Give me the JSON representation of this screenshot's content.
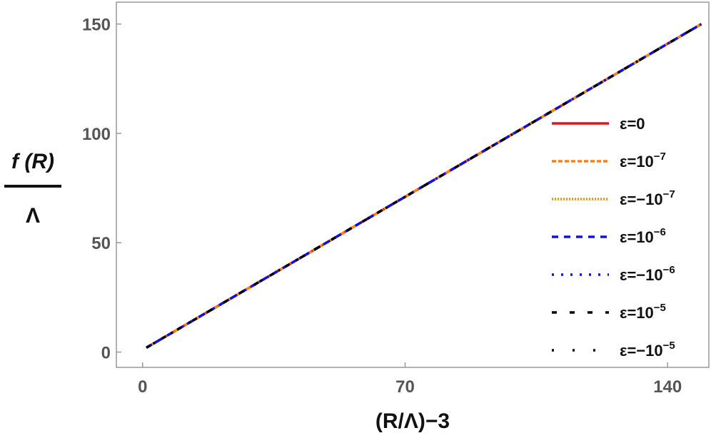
{
  "chart_data": {
    "type": "line",
    "xlabel": "(R/Λ)−3",
    "ylabel_numerator": "f (R)",
    "ylabel_denominator": "Λ",
    "xlim": [
      -7,
      151
    ],
    "ylim": [
      -7,
      160
    ],
    "xticks": [
      0,
      70,
      140
    ],
    "yticks": [
      0,
      50,
      100,
      150
    ],
    "grid": false,
    "legend_position": "right",
    "x": [
      1,
      149
    ],
    "series": [
      {
        "name": "ε=0",
        "label_base": "ε=0",
        "label_sup": "",
        "color": "#e8101a",
        "style": "solid",
        "values": [
          2,
          150
        ]
      },
      {
        "name": "ε=10−7",
        "label_base": "ε=10",
        "label_sup": "−7",
        "color": "#ff7f0e",
        "style": "dashed",
        "values": [
          2,
          150
        ]
      },
      {
        "name": "ε=−10−7",
        "label_base": "ε=−10",
        "label_sup": "−7",
        "color": "#ff8c00",
        "style": "dotted",
        "values": [
          2,
          150
        ]
      },
      {
        "name": "ε=10−6",
        "label_base": "ε=10",
        "label_sup": "−6",
        "color": "#1010e0",
        "style": "dashed-long",
        "values": [
          2,
          150
        ]
      },
      {
        "name": "ε=−10−6",
        "label_base": "ε=−10",
        "label_sup": "−6",
        "color": "#1010e0",
        "style": "dotted-sparse",
        "values": [
          2,
          150
        ]
      },
      {
        "name": "ε=10−5",
        "label_base": "ε=10",
        "label_sup": "−5",
        "color": "#000000",
        "style": "dashed-sparse",
        "values": [
          2,
          150
        ]
      },
      {
        "name": "ε=−10−5",
        "label_base": "ε=−10",
        "label_sup": "−5",
        "color": "#000000",
        "style": "dotted-very-sparse",
        "values": [
          2,
          150
        ]
      }
    ]
  }
}
